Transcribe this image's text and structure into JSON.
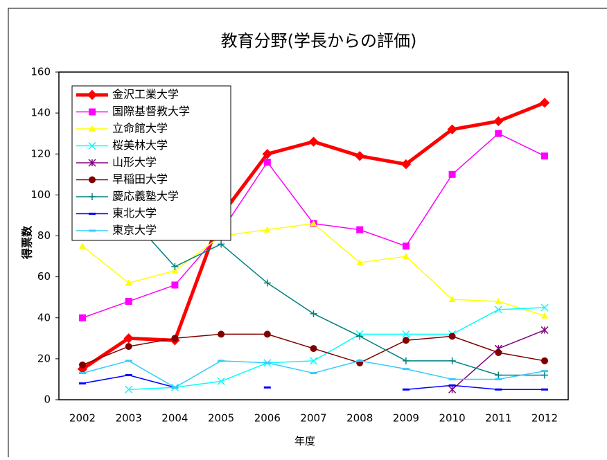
{
  "chart_data": {
    "type": "line",
    "title": "教育分野(学長からの評価)",
    "x_label": "年度",
    "y_label": "得票数",
    "categories": [
      "2002",
      "2003",
      "2004",
      "2005",
      "2006",
      "2007",
      "2008",
      "2009",
      "2010",
      "2011",
      "2012"
    ],
    "ylim": [
      0,
      160
    ],
    "yticks": [
      0,
      20,
      40,
      60,
      80,
      100,
      120,
      140,
      160
    ],
    "grid": false,
    "legend": "upper left",
    "series": [
      {
        "name": "金沢工業大学",
        "color": "#ff0000",
        "marker": "diamond",
        "width": 5,
        "values": [
          15,
          30,
          29,
          90,
          120,
          126,
          119,
          115,
          132,
          136,
          145
        ]
      },
      {
        "name": "国際基督教大学",
        "color": "#ff00ff",
        "marker": "square",
        "width": 1.5,
        "values": [
          40,
          48,
          56,
          82,
          116,
          86,
          83,
          75,
          110,
          130,
          119
        ]
      },
      {
        "name": "立命館大学",
        "color": "#ffff00",
        "marker": "triangle",
        "width": 1.5,
        "values": [
          75,
          57,
          63,
          80,
          83,
          86,
          67,
          70,
          49,
          48,
          41
        ]
      },
      {
        "name": "桜美林大学",
        "color": "#00ffff",
        "marker": "x",
        "width": 1.5,
        "values": [
          null,
          5,
          6,
          9,
          18,
          19,
          32,
          32,
          32,
          44,
          45
        ]
      },
      {
        "name": "山形大学",
        "color": "#800080",
        "marker": "star",
        "width": 1.5,
        "values": [
          null,
          null,
          null,
          null,
          null,
          null,
          null,
          null,
          5,
          25,
          34
        ]
      },
      {
        "name": "早稲田大学",
        "color": "#800000",
        "marker": "circle",
        "width": 1.5,
        "values": [
          17,
          26,
          30,
          32,
          32,
          25,
          18,
          29,
          31,
          23,
          19
        ]
      },
      {
        "name": "慶応義塾大学",
        "color": "#008080",
        "marker": "plus",
        "width": 1.5,
        "values": [
          85,
          90,
          65,
          76,
          57,
          42,
          31,
          19,
          19,
          12,
          12
        ]
      },
      {
        "name": "東北大学",
        "color": "#0000ff",
        "marker": "dash",
        "width": 1.5,
        "values": [
          8,
          12,
          6,
          null,
          6,
          null,
          null,
          5,
          7,
          5,
          5
        ]
      },
      {
        "name": "東京大学",
        "color": "#33ccff",
        "marker": "dash",
        "width": 1.5,
        "values": [
          13,
          19,
          6,
          19,
          18,
          13,
          19,
          15,
          10,
          10,
          14
        ]
      }
    ]
  }
}
